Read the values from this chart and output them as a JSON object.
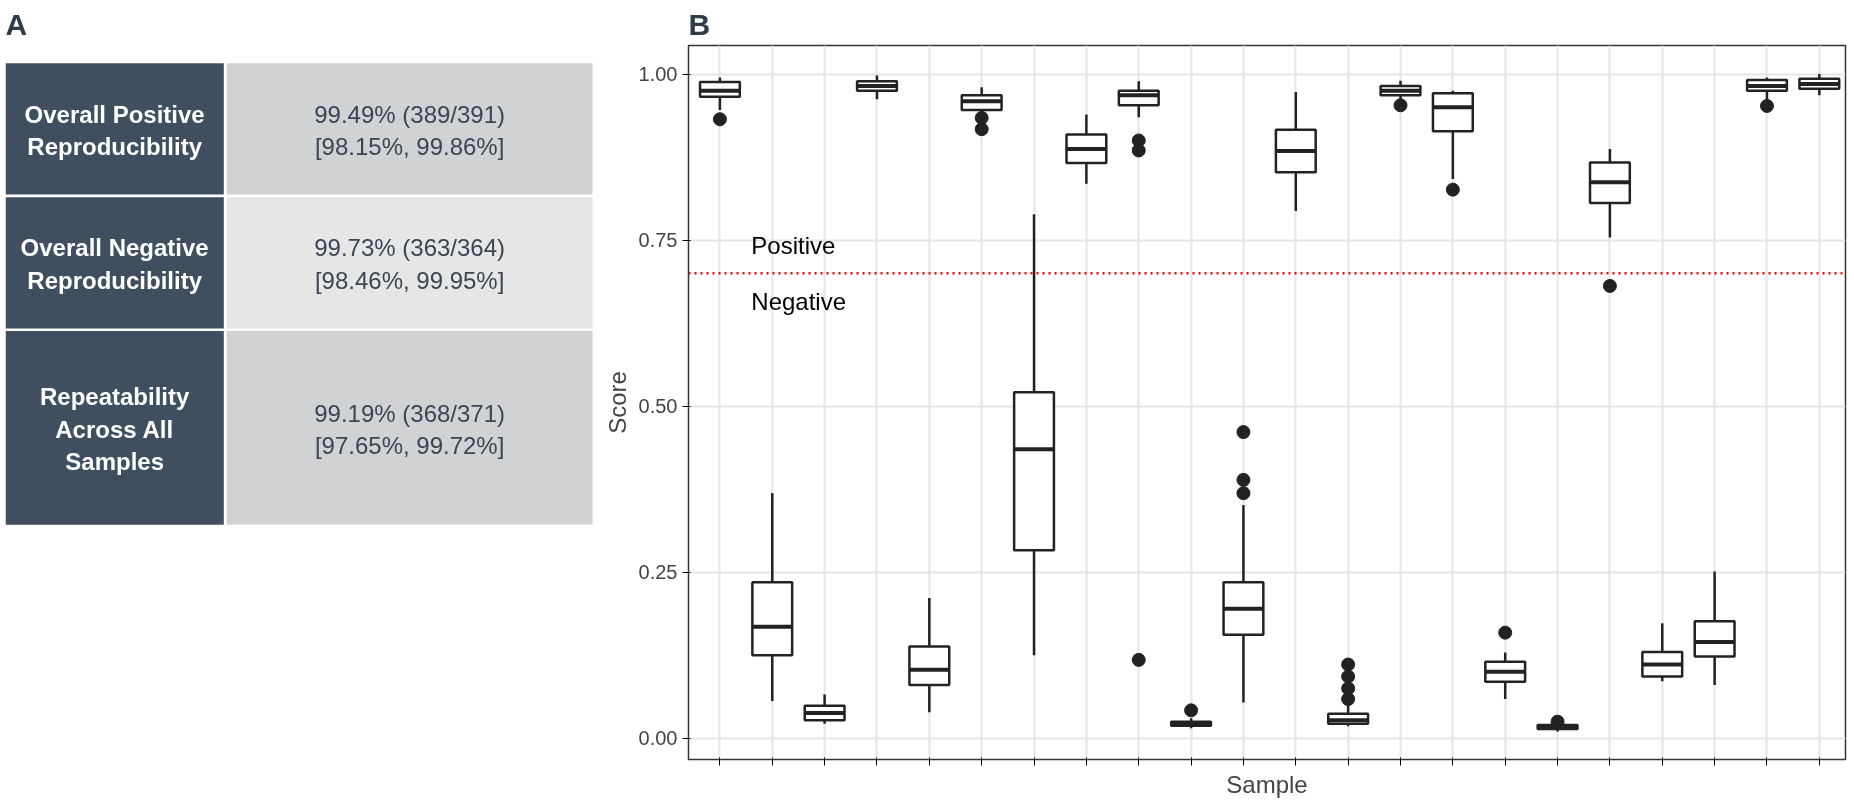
{
  "chart_data": [
    {
      "type": "other",
      "title": "A",
      "annotations": [
        "Overall Positive Reproducibility",
        "99.49% (389/391)\n[98.15%, 99.86%]",
        "Overall Negative Reproducibility",
        "99.73% (363/364)\n[98.46%, 99.95%]",
        "Repeatability Across All Samples",
        "99.19% (368/371)\n[97.65%, 99.72%]"
      ]
    },
    {
      "type": "box",
      "title": "B",
      "xlabel": "Sample",
      "ylabel": "Score",
      "categories": [
        null,
        null,
        null,
        null,
        null,
        null,
        null,
        null,
        null,
        null,
        null,
        null,
        null,
        null,
        null,
        null,
        null,
        null,
        null,
        null,
        null,
        null
      ],
      "boxes": [
        {
          "low": 0.946,
          "q1": 0.966,
          "median": 0.975,
          "q3": 0.988,
          "high": 0.995,
          "outliers": [
            0.932
          ]
        },
        {
          "low": 0.056,
          "q1": 0.125,
          "median": 0.168,
          "q3": 0.235,
          "high": 0.369
        },
        {
          "low": 0.022,
          "q1": 0.027,
          "median": 0.038,
          "q3": 0.049,
          "high": 0.066
        },
        {
          "low": 0.962,
          "q1": 0.975,
          "median": 0.982,
          "q3": 0.989,
          "high": 0.998
        },
        {
          "low": 0.039,
          "q1": 0.08,
          "median": 0.103,
          "q3": 0.138,
          "high": 0.211
        },
        {
          "low": 0.93,
          "q1": 0.946,
          "median": 0.959,
          "q3": 0.968,
          "high": 0.98,
          "outliers": [
            0.917,
            0.934
          ]
        },
        {
          "low": 0.125,
          "q1": 0.283,
          "median": 0.435,
          "q3": 0.521,
          "high": 0.789
        },
        {
          "low": 0.835,
          "q1": 0.866,
          "median": 0.887,
          "q3": 0.909,
          "high": 0.939
        },
        {
          "low": 0.935,
          "q1": 0.953,
          "median": 0.968,
          "q3": 0.975,
          "high": 0.989,
          "outliers": [
            0.9,
            0.885,
            0.118
          ]
        },
        {
          "low": 0.015,
          "q1": 0.019,
          "median": 0.022,
          "q3": 0.025,
          "high": 0.03,
          "outliers": [
            0.042
          ]
        },
        {
          "low": 0.054,
          "q1": 0.156,
          "median": 0.195,
          "q3": 0.235,
          "high": 0.351,
          "outliers": [
            0.461,
            0.389,
            0.369
          ]
        },
        {
          "low": 0.794,
          "q1": 0.852,
          "median": 0.884,
          "q3": 0.916,
          "high": 0.973
        },
        {
          "low": 0.018,
          "q1": 0.022,
          "median": 0.027,
          "q3": 0.037,
          "high": 0.05,
          "outliers": [
            0.111,
            0.093,
            0.075,
            0.059
          ]
        },
        {
          "low": 0.96,
          "q1": 0.968,
          "median": 0.975,
          "q3": 0.982,
          "high": 0.99,
          "outliers": [
            0.953
          ]
        },
        {
          "low": 0.842,
          "q1": 0.914,
          "median": 0.95,
          "q3": 0.971,
          "high": 0.975,
          "outliers": [
            0.826
          ]
        },
        {
          "low": 0.059,
          "q1": 0.085,
          "median": 0.1,
          "q3": 0.115,
          "high": 0.129,
          "outliers": [
            0.159
          ]
        },
        {
          "low": 0.01,
          "q1": 0.014,
          "median": 0.017,
          "q3": 0.02,
          "high": 0.024,
          "outliers": [
            0.025
          ]
        },
        {
          "low": 0.754,
          "q1": 0.806,
          "median": 0.837,
          "q3": 0.867,
          "high": 0.887,
          "outliers": [
            0.681
          ]
        },
        {
          "low": 0.086,
          "q1": 0.093,
          "median": 0.111,
          "q3": 0.13,
          "high": 0.173
        },
        {
          "low": 0.08,
          "q1": 0.123,
          "median": 0.145,
          "q3": 0.176,
          "high": 0.251
        },
        {
          "low": 0.955,
          "q1": 0.975,
          "median": 0.982,
          "q3": 0.991,
          "high": 0.995,
          "outliers": [
            0.952
          ]
        },
        {
          "low": 0.968,
          "q1": 0.978,
          "median": 0.985,
          "q3": 0.993,
          "high": 1.0
        }
      ],
      "ylim": [
        -0.032,
        1.043
      ],
      "yticks": [
        {
          "value": 0,
          "label": "0.00"
        },
        {
          "value": 0.25,
          "label": "0.25"
        },
        {
          "value": 0.5,
          "label": "0.50"
        },
        {
          "value": 0.75,
          "label": "0.75"
        },
        {
          "value": 1,
          "label": "1.00"
        }
      ],
      "grid": true,
      "ref_lines": [
        {
          "axis": "y",
          "value": 0.7,
          "color": "#ff0000",
          "line_style": "dotted"
        }
      ],
      "annotations": [
        "Positive",
        "Negative"
      ]
    }
  ]
}
